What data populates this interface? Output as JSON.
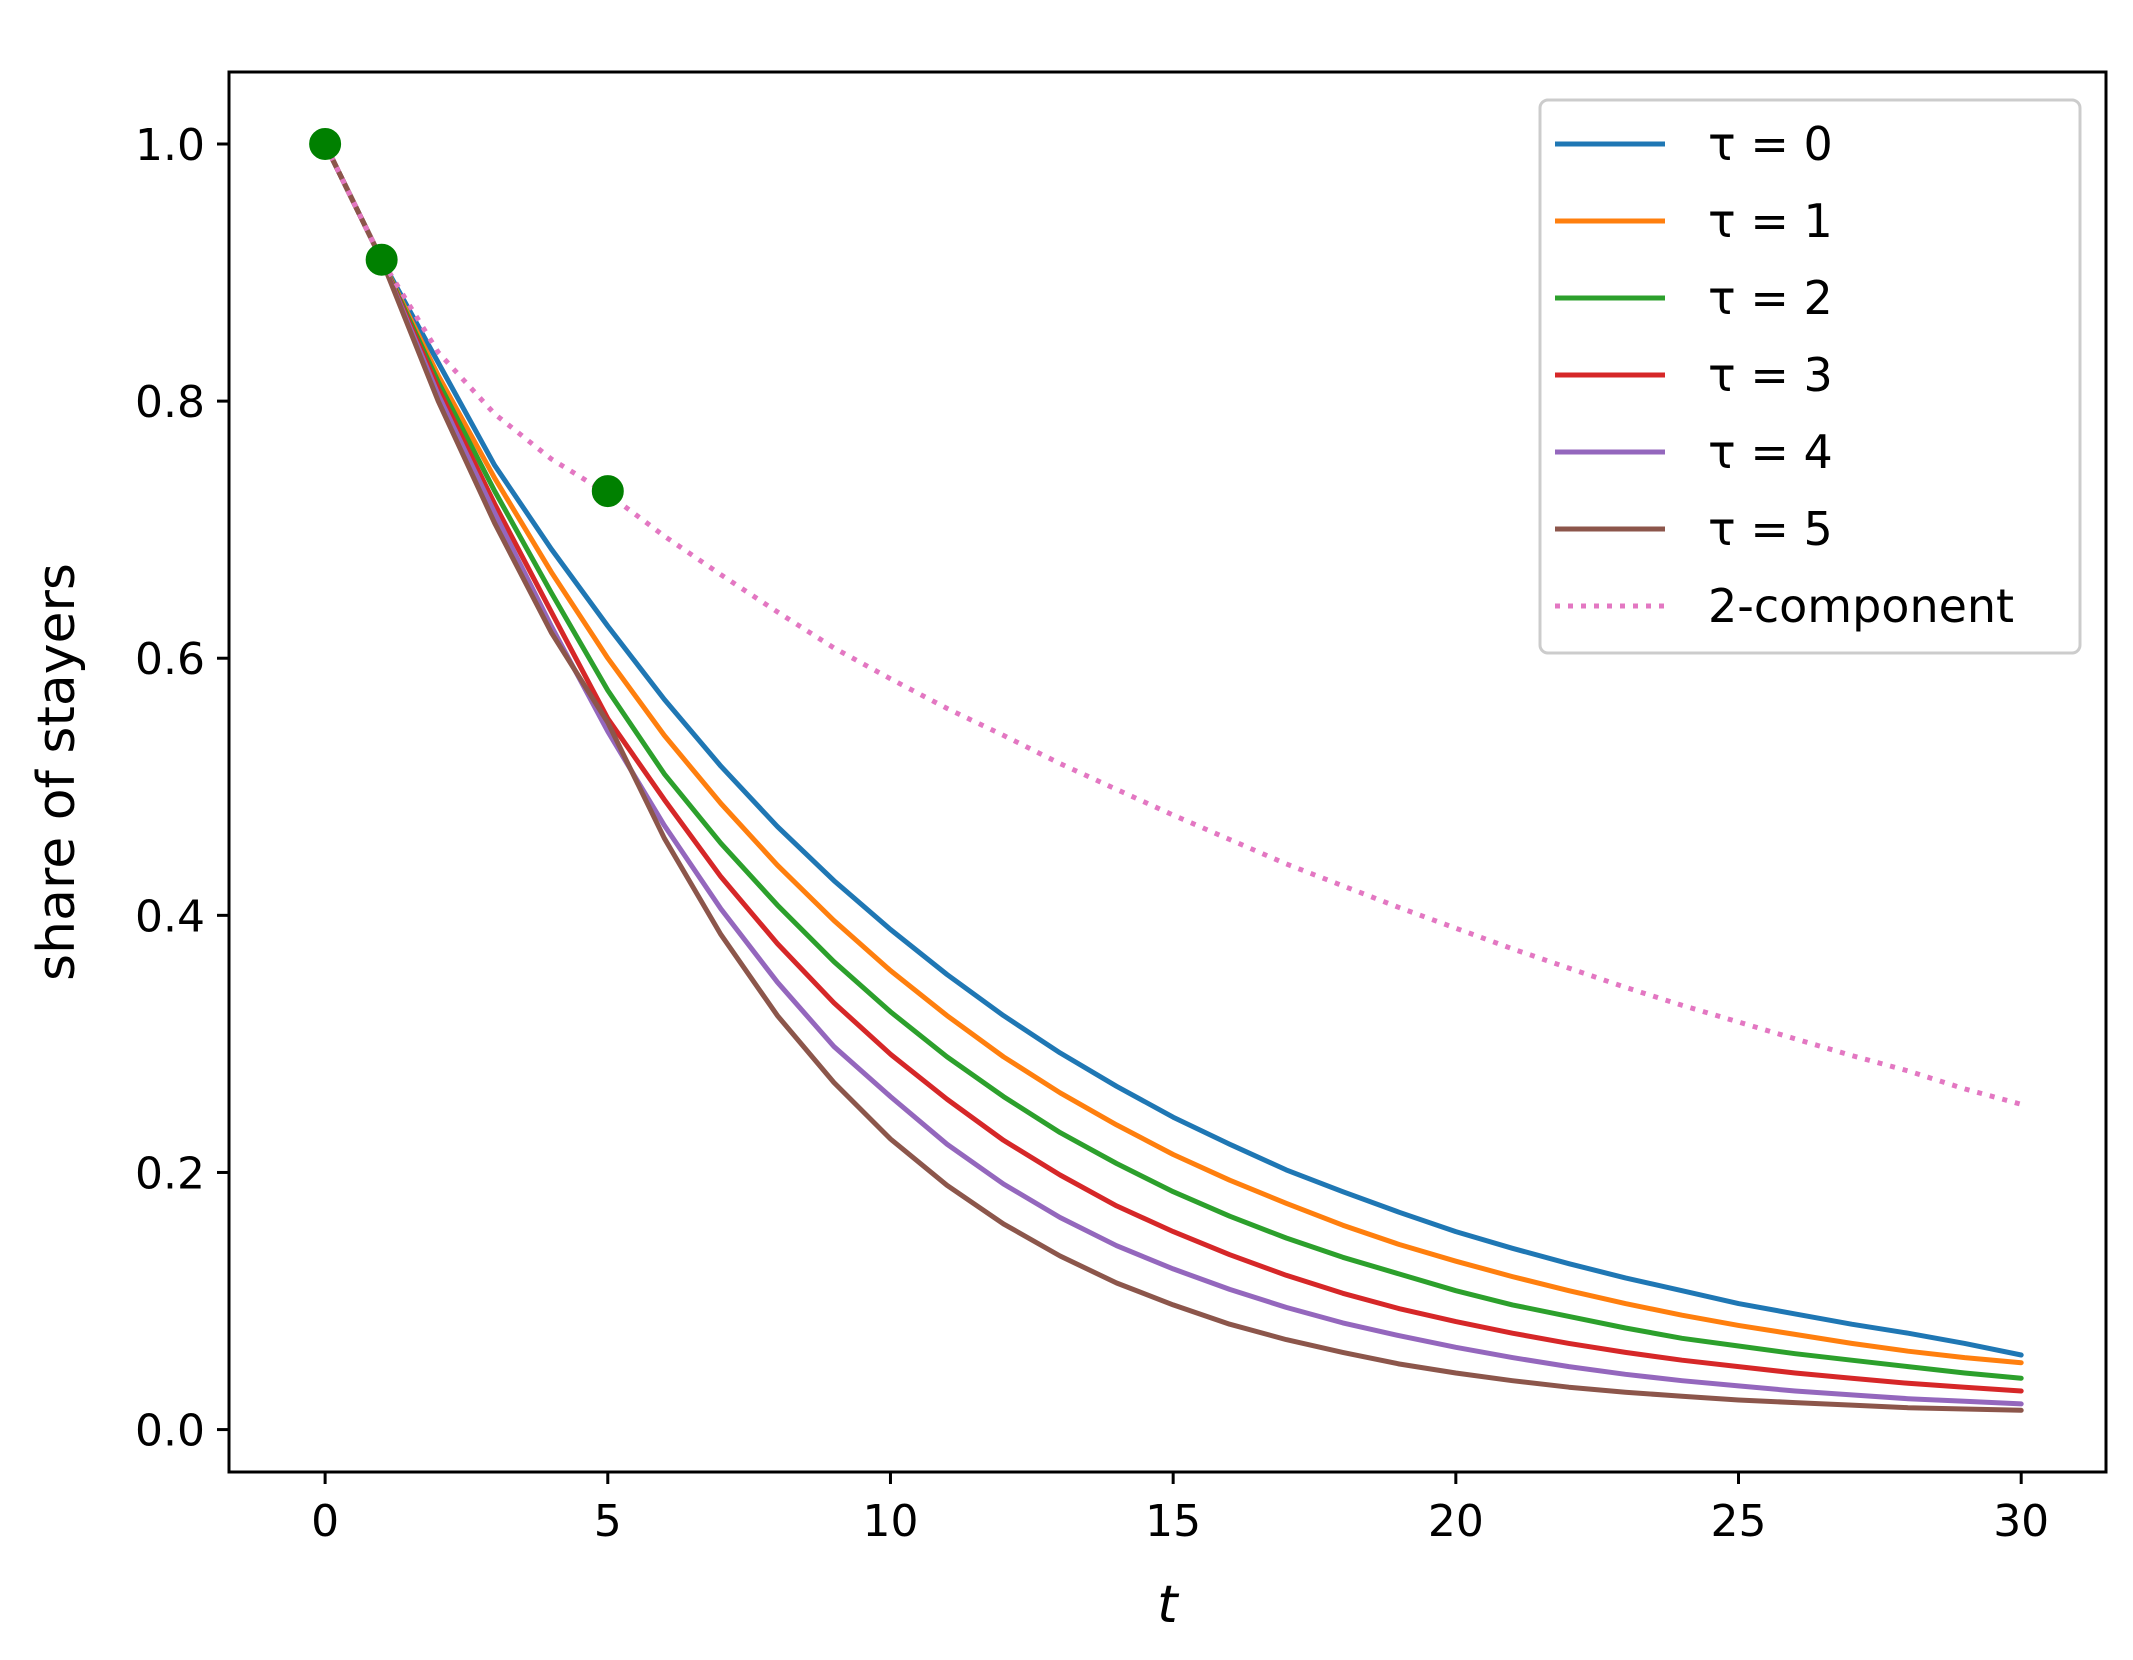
{
  "chart_data": {
    "type": "line",
    "title": "",
    "xlabel": "t",
    "ylabel": "share of stayers",
    "xlim": [
      -1.7,
      31.5
    ],
    "ylim": [
      -0.033,
      1.056
    ],
    "xticks": [
      0,
      5,
      10,
      15,
      20,
      25,
      30
    ],
    "xtick_labels": [
      "0",
      "5",
      "10",
      "15",
      "20",
      "25",
      "30"
    ],
    "yticks": [
      0.0,
      0.2,
      0.4,
      0.6,
      0.8,
      1.0
    ],
    "ytick_labels": [
      "0.0",
      "0.2",
      "0.4",
      "0.6",
      "0.8",
      "1.0"
    ],
    "grid": false,
    "legend_position": "top-right",
    "x": [
      0,
      1,
      2,
      3,
      4,
      5,
      6,
      7,
      8,
      9,
      10,
      11,
      12,
      13,
      14,
      15,
      16,
      17,
      18,
      19,
      20,
      21,
      22,
      23,
      24,
      25,
      26,
      27,
      28,
      29,
      30
    ],
    "series": [
      {
        "name": "τ = 0",
        "color": "#1f77b4",
        "style": "solid",
        "values": [
          1.0,
          0.91,
          0.83,
          0.75,
          0.685,
          0.625,
          0.568,
          0.516,
          0.469,
          0.427,
          0.389,
          0.354,
          0.322,
          0.293,
          0.267,
          0.243,
          0.222,
          0.202,
          0.185,
          0.169,
          0.154,
          0.141,
          0.129,
          0.118,
          0.108,
          0.098,
          0.09,
          0.082,
          0.075,
          0.067,
          0.058
        ]
      },
      {
        "name": "τ = 1",
        "color": "#ff7f0e",
        "style": "solid",
        "values": [
          1.0,
          0.91,
          0.82,
          0.74,
          0.667,
          0.6,
          0.54,
          0.487,
          0.439,
          0.396,
          0.357,
          0.322,
          0.29,
          0.262,
          0.237,
          0.214,
          0.194,
          0.176,
          0.159,
          0.144,
          0.131,
          0.119,
          0.108,
          0.098,
          0.089,
          0.081,
          0.074,
          0.067,
          0.061,
          0.056,
          0.052
        ]
      },
      {
        "name": "τ = 2",
        "color": "#2ca02c",
        "style": "solid",
        "values": [
          1.0,
          0.91,
          0.815,
          0.73,
          0.651,
          0.575,
          0.51,
          0.456,
          0.408,
          0.364,
          0.325,
          0.29,
          0.259,
          0.231,
          0.207,
          0.185,
          0.166,
          0.149,
          0.134,
          0.121,
          0.108,
          0.097,
          0.088,
          0.079,
          0.071,
          0.065,
          0.059,
          0.054,
          0.049,
          0.044,
          0.04
        ]
      },
      {
        "name": "τ = 3",
        "color": "#d62728",
        "style": "solid",
        "values": [
          1.0,
          0.91,
          0.81,
          0.72,
          0.636,
          0.553,
          0.49,
          0.43,
          0.378,
          0.332,
          0.292,
          0.257,
          0.225,
          0.198,
          0.174,
          0.154,
          0.136,
          0.12,
          0.106,
          0.094,
          0.084,
          0.075,
          0.067,
          0.06,
          0.054,
          0.049,
          0.044,
          0.04,
          0.036,
          0.033,
          0.03
        ]
      },
      {
        "name": "τ = 4",
        "color": "#9467bd",
        "style": "solid",
        "values": [
          1.0,
          0.91,
          0.805,
          0.713,
          0.625,
          0.543,
          0.47,
          0.405,
          0.348,
          0.298,
          0.259,
          0.222,
          0.191,
          0.165,
          0.143,
          0.125,
          0.109,
          0.095,
          0.083,
          0.073,
          0.064,
          0.056,
          0.049,
          0.043,
          0.038,
          0.034,
          0.03,
          0.027,
          0.024,
          0.022,
          0.02
        ]
      },
      {
        "name": "τ = 5",
        "color": "#8c564b",
        "style": "solid",
        "values": [
          1.0,
          0.91,
          0.8,
          0.705,
          0.62,
          0.55,
          0.46,
          0.385,
          0.322,
          0.27,
          0.226,
          0.19,
          0.16,
          0.135,
          0.114,
          0.097,
          0.082,
          0.07,
          0.06,
          0.051,
          0.044,
          0.038,
          0.033,
          0.029,
          0.026,
          0.023,
          0.021,
          0.019,
          0.017,
          0.016,
          0.015
        ]
      },
      {
        "name": "2-component",
        "color": "#e377c2",
        "style": "dotted",
        "values": [
          1.0,
          0.91,
          0.838,
          0.79,
          0.755,
          0.728,
          0.695,
          0.665,
          0.636,
          0.608,
          0.584,
          0.561,
          0.54,
          0.518,
          0.498,
          0.478,
          0.459,
          0.44,
          0.423,
          0.406,
          0.39,
          0.374,
          0.359,
          0.344,
          0.33,
          0.317,
          0.304,
          0.291,
          0.279,
          0.265,
          0.253
        ]
      }
    ],
    "scatter": {
      "color": "#008000",
      "points": [
        {
          "x": 0,
          "y": 1.0
        },
        {
          "x": 1,
          "y": 0.91
        },
        {
          "x": 5,
          "y": 0.73
        }
      ]
    }
  }
}
